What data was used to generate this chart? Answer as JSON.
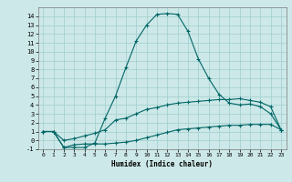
{
  "xlabel": "Humidex (Indice chaleur)",
  "background_color": "#cde8e8",
  "grid_color": "#9ecece",
  "line_color": "#006666",
  "xlim": [
    -0.5,
    23.5
  ],
  "ylim": [
    -1,
    15
  ],
  "xticks": [
    0,
    1,
    2,
    3,
    4,
    5,
    6,
    7,
    8,
    9,
    10,
    11,
    12,
    13,
    14,
    15,
    16,
    17,
    18,
    19,
    20,
    21,
    22,
    23
  ],
  "yticks": [
    -1,
    0,
    1,
    2,
    3,
    4,
    5,
    6,
    7,
    8,
    9,
    10,
    11,
    12,
    13,
    14
  ],
  "line1_x": [
    0,
    1,
    2,
    3,
    4,
    5,
    6,
    7,
    8,
    9,
    10,
    11,
    12,
    13,
    14,
    15,
    16,
    17,
    18,
    19,
    20,
    21,
    22,
    23
  ],
  "line1_y": [
    1,
    1,
    -0.8,
    -0.8,
    -0.8,
    -0.3,
    2.5,
    5,
    8.2,
    11.2,
    13,
    14.2,
    14.3,
    14.2,
    12.3,
    9.2,
    7,
    5.2,
    4.2,
    4,
    4.1,
    3.8,
    3,
    1.2
  ],
  "line2_x": [
    0,
    1,
    2,
    3,
    4,
    5,
    6,
    7,
    8,
    9,
    10,
    11,
    12,
    13,
    14,
    15,
    16,
    17,
    18,
    19,
    20,
    21,
    22,
    23
  ],
  "line2_y": [
    1,
    1,
    0,
    0.2,
    0.5,
    0.8,
    1.2,
    2.3,
    2.5,
    3,
    3.5,
    3.7,
    4,
    4.2,
    4.3,
    4.4,
    4.5,
    4.6,
    4.6,
    4.7,
    4.5,
    4.3,
    3.8,
    1.2
  ],
  "line3_x": [
    0,
    1,
    2,
    3,
    4,
    5,
    6,
    7,
    8,
    9,
    10,
    11,
    12,
    13,
    14,
    15,
    16,
    17,
    18,
    19,
    20,
    21,
    22,
    23
  ],
  "line3_y": [
    1,
    1,
    -0.8,
    -0.5,
    -0.4,
    -0.4,
    -0.4,
    -0.3,
    -0.2,
    0,
    0.3,
    0.6,
    0.9,
    1.2,
    1.3,
    1.4,
    1.5,
    1.6,
    1.7,
    1.7,
    1.8,
    1.8,
    1.8,
    1.2
  ]
}
